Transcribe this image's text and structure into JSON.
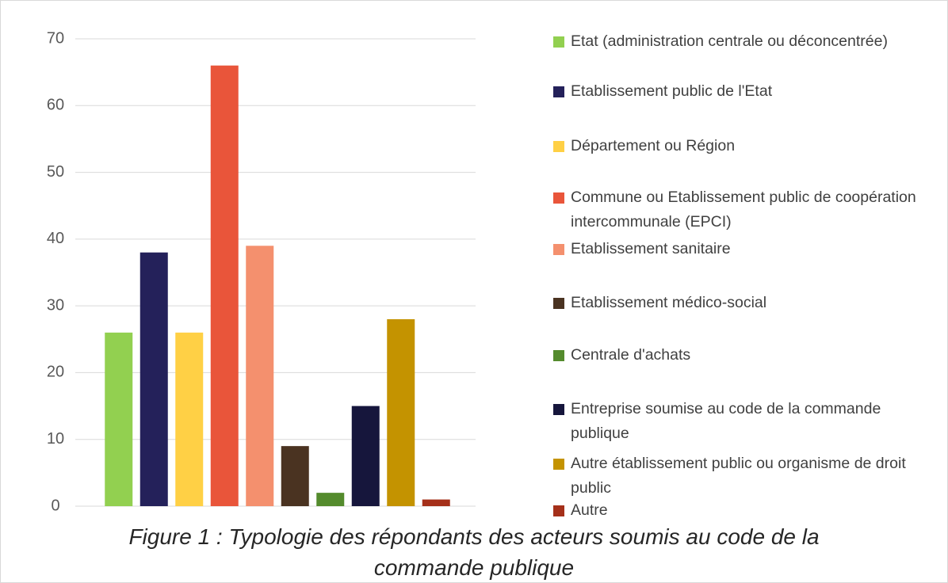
{
  "chart_data": {
    "type": "bar",
    "title": "Figure 1 : Typologie des répondants des acteurs soumis au code de la commande publique",
    "series": [
      {
        "name": "Etat (administration centrale ou déconcentrée)",
        "color": "#92d050",
        "values": [
          26
        ]
      },
      {
        "name": "Etablissement public de l'Etat",
        "color": "#24215a",
        "values": [
          38
        ]
      },
      {
        "name": "Département ou Région",
        "color": "#ffd045",
        "values": [
          26
        ]
      },
      {
        "name": "Commune ou Etablissement public de coopération intercommunale (EPCI)",
        "color": "#e9553a",
        "values": [
          66
        ]
      },
      {
        "name": "Etablissement sanitaire",
        "color": "#f4906e",
        "values": [
          39
        ]
      },
      {
        "name": "Etablissement médico-social",
        "color": "#4a3321",
        "values": [
          9
        ]
      },
      {
        "name": "Centrale d'achats",
        "color": "#548b2d",
        "values": [
          2
        ]
      },
      {
        "name": "Entreprise soumise au code de la commande publique",
        "color": "#16163c",
        "values": [
          15
        ]
      },
      {
        "name": "Autre établissement public ou organisme de droit public",
        "color": "#c49300",
        "values": [
          28
        ]
      },
      {
        "name": "Autre",
        "color": "#a5301a",
        "values": [
          1
        ]
      }
    ],
    "ylim": [
      0,
      70
    ],
    "yticks": [
      0,
      10,
      20,
      30,
      40,
      50,
      60,
      70
    ],
    "grid": true,
    "legend": "right"
  }
}
